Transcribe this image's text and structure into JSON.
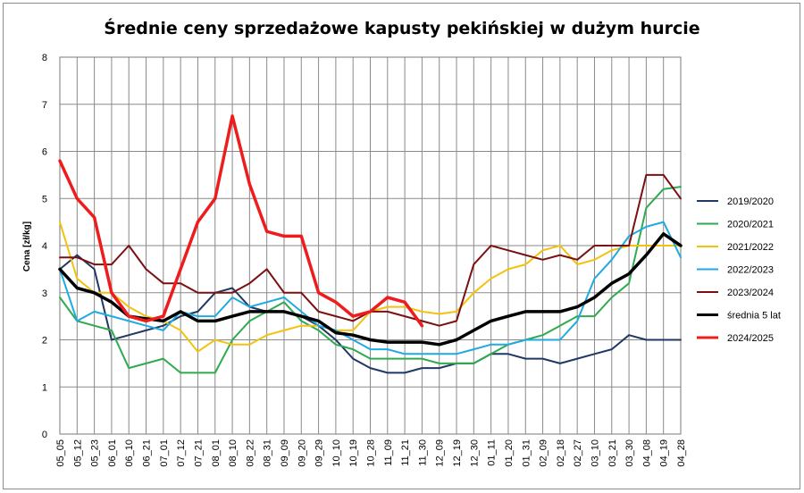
{
  "chart_data": {
    "type": "line",
    "title": "Średnie ceny sprzedażowe kapusty pekińskiej w dużym hurcie",
    "ylabel": "Cena [zł/kg]",
    "xlabel": "",
    "ylim": [
      0,
      8
    ],
    "y_ticks": [
      "0",
      "1",
      "2",
      "3",
      "4",
      "5",
      "6",
      "7",
      "8"
    ],
    "grid": true,
    "legend_position": "right",
    "x_labels": [
      "05_05",
      "05_12",
      "05_23",
      "06_01",
      "06_10",
      "06_21",
      "07_01",
      "07_12",
      "07_21",
      "08_01",
      "08_10",
      "08_22",
      "08_31",
      "09_09",
      "09_20",
      "09_29",
      "10_10",
      "10_19",
      "10_28",
      "11_09",
      "11_21",
      "11_30",
      "12_09",
      "12_19",
      "12_30",
      "01_11",
      "01_20",
      "01_31",
      "02_09",
      "02_18",
      "02_27",
      "03_10",
      "03_21",
      "03_30",
      "04_08",
      "04_19",
      "04_28"
    ],
    "series": [
      {
        "name": "2019/2020",
        "color": "#1f3864",
        "width": 2,
        "values": [
          3.5,
          3.8,
          3.5,
          2.0,
          2.1,
          2.2,
          2.3,
          2.5,
          2.6,
          3.0,
          3.1,
          2.7,
          2.6,
          2.6,
          2.5,
          2.3,
          2.0,
          1.6,
          1.4,
          1.3,
          1.3,
          1.4,
          1.4,
          1.5,
          1.5,
          1.7,
          1.7,
          1.6,
          1.6,
          1.5,
          1.6,
          1.7,
          1.8,
          2.1,
          2.0,
          2.0,
          2.0
        ]
      },
      {
        "name": "2020/2021",
        "color": "#2eaa4f",
        "width": 2,
        "values": [
          2.9,
          2.4,
          2.3,
          2.2,
          1.4,
          1.5,
          1.6,
          1.3,
          1.3,
          1.3,
          2.0,
          2.4,
          2.6,
          2.8,
          2.4,
          2.2,
          1.9,
          1.8,
          1.6,
          1.6,
          1.6,
          1.6,
          1.5,
          1.5,
          1.5,
          1.7,
          1.9,
          2.0,
          2.1,
          2.3,
          2.5,
          2.5,
          2.9,
          3.2,
          4.8,
          5.2,
          5.25
        ]
      },
      {
        "name": "2021/2022",
        "color": "#f4c20d",
        "width": 2,
        "values": [
          4.5,
          3.3,
          3.0,
          3.0,
          2.7,
          2.5,
          2.4,
          2.2,
          1.75,
          2.0,
          1.9,
          1.9,
          2.1,
          2.2,
          2.3,
          2.3,
          2.2,
          2.2,
          2.6,
          2.7,
          2.7,
          2.6,
          2.55,
          2.6,
          3.0,
          3.3,
          3.5,
          3.6,
          3.9,
          4.0,
          3.6,
          3.7,
          3.9,
          4.0,
          4.0,
          4.0,
          4.0
        ]
      },
      {
        "name": "2022/2023",
        "color": "#21a9e1",
        "width": 2,
        "values": [
          3.5,
          2.4,
          2.6,
          2.5,
          2.4,
          2.3,
          2.2,
          2.6,
          2.5,
          2.5,
          2.9,
          2.7,
          2.8,
          2.9,
          2.6,
          2.3,
          2.2,
          2.0,
          1.8,
          1.8,
          1.7,
          1.7,
          1.7,
          1.7,
          1.8,
          1.9,
          1.9,
          2.0,
          2.0,
          2.0,
          2.4,
          3.3,
          3.7,
          4.2,
          4.4,
          4.5,
          3.75
        ]
      },
      {
        "name": "2023/2024",
        "color": "#7b1010",
        "width": 2,
        "values": [
          3.75,
          3.75,
          3.6,
          3.6,
          4.0,
          3.5,
          3.2,
          3.2,
          3.0,
          3.0,
          3.0,
          3.2,
          3.5,
          3.0,
          3.0,
          2.6,
          2.5,
          2.4,
          2.6,
          2.6,
          2.5,
          2.4,
          2.3,
          2.4,
          3.6,
          4.0,
          3.9,
          3.8,
          3.7,
          3.8,
          3.7,
          4.0,
          4.0,
          4.0,
          5.5,
          5.5,
          5.0
        ]
      },
      {
        "name": "średnia 5 lat",
        "color": "#000000",
        "width": 3.5,
        "values": [
          3.5,
          3.1,
          3.0,
          2.8,
          2.5,
          2.45,
          2.4,
          2.6,
          2.4,
          2.4,
          2.5,
          2.6,
          2.6,
          2.6,
          2.5,
          2.4,
          2.15,
          2.1,
          2.0,
          1.95,
          1.95,
          1.95,
          1.9,
          2.0,
          2.2,
          2.4,
          2.5,
          2.6,
          2.6,
          2.6,
          2.7,
          2.9,
          3.2,
          3.4,
          3.8,
          4.25,
          4.0
        ]
      },
      {
        "name": "2024/2025",
        "color": "#ee1c1c",
        "width": 3.5,
        "values": [
          5.8,
          5.0,
          4.6,
          3.0,
          2.5,
          2.4,
          2.5,
          3.5,
          4.5,
          5.0,
          6.75,
          5.3,
          4.3,
          4.2,
          4.2,
          3.0,
          2.8,
          2.5,
          2.6,
          2.9,
          2.8,
          2.3,
          null,
          null,
          null,
          null,
          null,
          null,
          null,
          null,
          null,
          null,
          null,
          null,
          null,
          null,
          null
        ]
      }
    ]
  }
}
